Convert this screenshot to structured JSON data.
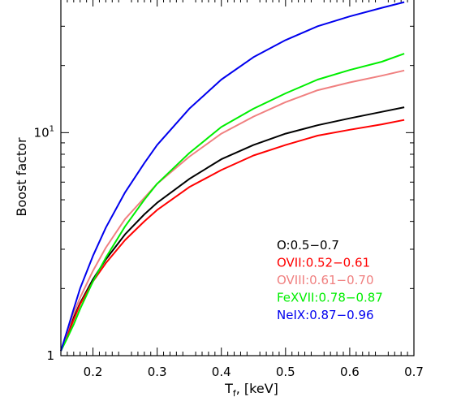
{
  "chart_data": {
    "type": "line",
    "title": "",
    "xlabel": "T",
    "xlabel_subscript": "f",
    "xlabel_unit": ", [keV]",
    "ylabel": "Boost factor",
    "xlim": [
      0.15,
      0.7
    ],
    "ylim": [
      1,
      40
    ],
    "yscale": "log",
    "grid": false,
    "legend_position": "lower-right",
    "x_ticks": [
      0.2,
      0.3,
      0.4,
      0.5,
      0.6,
      0.7
    ],
    "x_tick_labels": [
      "0.2",
      "0.3",
      "0.4",
      "0.5",
      "0.6",
      "0.7"
    ],
    "y_ticks": [
      1,
      10
    ],
    "y_tick_labels": [
      {
        "base": "1",
        "exp": ""
      },
      {
        "base": "10",
        "exp": "1"
      }
    ],
    "x": [
      0.15,
      0.16,
      0.17,
      0.18,
      0.2,
      0.22,
      0.25,
      0.28,
      0.3,
      0.35,
      0.4,
      0.45,
      0.5,
      0.55,
      0.6,
      0.65,
      0.685
    ],
    "series": [
      {
        "name": "O:0.5−0.7",
        "color": "#000000",
        "values": [
          1.05,
          1.25,
          1.48,
          1.72,
          2.2,
          2.7,
          3.5,
          4.3,
          4.85,
          6.2,
          7.6,
          8.8,
          9.9,
          10.8,
          11.6,
          12.4,
          13.0
        ]
      },
      {
        "name": "OVII:0.52−0.61",
        "color": "#ff0000",
        "values": [
          1.05,
          1.22,
          1.45,
          1.7,
          2.15,
          2.6,
          3.3,
          4.0,
          4.5,
          5.7,
          6.8,
          7.9,
          8.8,
          9.7,
          10.3,
          10.9,
          11.4
        ]
      },
      {
        "name": "OVIII:0.61−0.70",
        "color": "#f08080",
        "values": [
          1.05,
          1.28,
          1.55,
          1.82,
          2.4,
          3.05,
          4.1,
          5.1,
          5.9,
          7.8,
          9.9,
          11.8,
          13.7,
          15.5,
          16.8,
          18.0,
          19.0
        ]
      },
      {
        "name": "FeXVII:0.78−0.87",
        "color": "#00ee00",
        "values": [
          1.05,
          1.2,
          1.38,
          1.62,
          2.15,
          2.75,
          3.8,
          5.0,
          5.9,
          8.1,
          10.6,
          12.8,
          15.0,
          17.3,
          19.1,
          20.8,
          22.6
        ]
      },
      {
        "name": "NeIX:0.87−0.96",
        "color": "#0000ee",
        "values": [
          1.05,
          1.3,
          1.62,
          2.0,
          2.8,
          3.75,
          5.4,
          7.3,
          8.8,
          12.8,
          17.3,
          21.8,
          26.0,
          30.0,
          33.2,
          36.3,
          38.5
        ]
      }
    ]
  }
}
